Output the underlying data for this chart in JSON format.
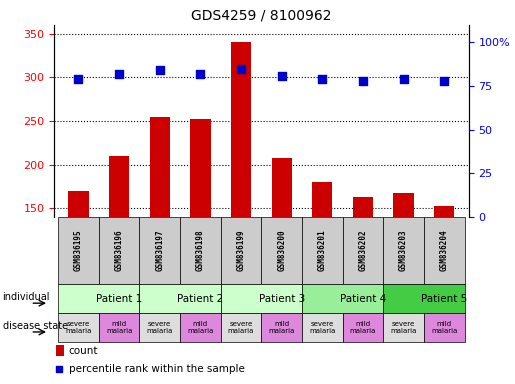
{
  "title": "GDS4259 / 8100962",
  "samples": [
    "GSM836195",
    "GSM836196",
    "GSM836197",
    "GSM836198",
    "GSM836199",
    "GSM836200",
    "GSM836201",
    "GSM836202",
    "GSM836203",
    "GSM836204"
  ],
  "counts": [
    170,
    210,
    255,
    252,
    340,
    207,
    180,
    163,
    168,
    152
  ],
  "percentile_ranks": [
    79,
    82,
    84,
    82,
    85,
    81,
    79,
    78,
    79,
    78
  ],
  "patients": [
    {
      "label": "Patient 1",
      "start": 0,
      "end": 2,
      "color": "#ccffcc"
    },
    {
      "label": "Patient 2",
      "start": 2,
      "end": 4,
      "color": "#ccffcc"
    },
    {
      "label": "Patient 3",
      "start": 4,
      "end": 6,
      "color": "#ccffcc"
    },
    {
      "label": "Patient 4",
      "start": 6,
      "end": 8,
      "color": "#99ee99"
    },
    {
      "label": "Patient 5",
      "start": 8,
      "end": 10,
      "color": "#44cc44"
    }
  ],
  "disease_states": [
    {
      "label": "severe\nmalaria",
      "color": "#dddddd"
    },
    {
      "label": "mild\nmalaria",
      "color": "#dd88dd"
    },
    {
      "label": "severe\nmalaria",
      "color": "#dddddd"
    },
    {
      "label": "mild\nmalaria",
      "color": "#dd88dd"
    },
    {
      "label": "severe\nmalaria",
      "color": "#dddddd"
    },
    {
      "label": "mild\nmalaria",
      "color": "#dd88dd"
    },
    {
      "label": "severe\nmalaria",
      "color": "#dddddd"
    },
    {
      "label": "mild\nmalaria",
      "color": "#dd88dd"
    },
    {
      "label": "severe\nmalaria",
      "color": "#dddddd"
    },
    {
      "label": "mild\nmalaria",
      "color": "#dd88dd"
    }
  ],
  "ylim_left": [
    140,
    360
  ],
  "ylim_right": [
    0,
    110
  ],
  "yticks_left": [
    150,
    200,
    250,
    300,
    350
  ],
  "yticks_right": [
    0,
    25,
    50,
    75,
    100
  ],
  "bar_color": "#cc0000",
  "dot_color": "#0000cc",
  "sample_label_bg": "#cccccc",
  "legend_count_color": "#cc0000",
  "legend_pct_color": "#0000cc"
}
